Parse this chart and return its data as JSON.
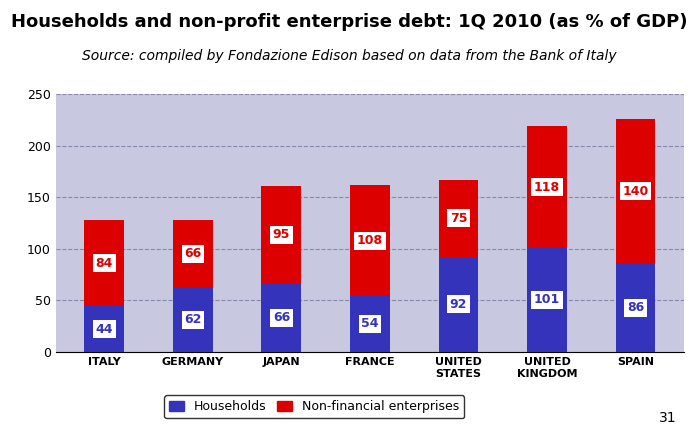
{
  "title": "Households and non-profit enterprise debt: 1Q 2010 (as % of GDP)",
  "subtitle": "Source: compiled by Fondazione Edison based on data from the Bank of Italy",
  "categories": [
    "ITALY",
    "GERMANY",
    "JAPAN",
    "FRANCE",
    "UNITED\nSTATES",
    "UNITED\nKINGDOM",
    "SPAIN"
  ],
  "households": [
    44,
    62,
    66,
    54,
    92,
    101,
    86
  ],
  "non_financial": [
    84,
    66,
    95,
    108,
    75,
    118,
    140
  ],
  "households_color": "#3333BB",
  "non_financial_color": "#DD0000",
  "figure_bg_color": "#FFFFFF",
  "plot_bg_color": "#C8C8E0",
  "ylim": [
    0,
    250
  ],
  "yticks": [
    0,
    50,
    100,
    150,
    200,
    250
  ],
  "grid_color": "#8888AA",
  "xlabel_fontsize": 8,
  "ylabel_fontsize": 9,
  "title_fontsize": 13,
  "subtitle_fontsize": 10,
  "bar_width": 0.45,
  "annotation_fontsize": 9,
  "legend_fontsize": 9,
  "page_number": "31"
}
